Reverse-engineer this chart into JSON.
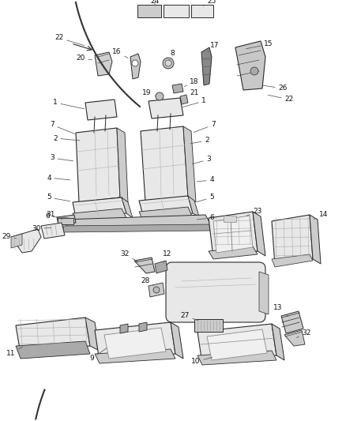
{
  "bg_color": "#ffffff",
  "line_color": "#2a2a2a",
  "fill_light": "#e8e8e8",
  "fill_mid": "#cccccc",
  "fill_dark": "#aaaaaa",
  "figsize": [
    4.38,
    5.33
  ],
  "dpi": 100,
  "label_fontsize": 6.5,
  "arrow_color": "#555555",
  "arrow_lw": 0.55
}
